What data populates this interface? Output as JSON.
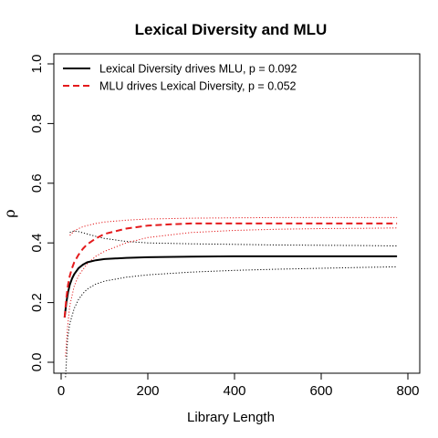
{
  "chart_data": {
    "type": "line",
    "title": "Lexical Diversity and MLU",
    "xlabel": "Library Length",
    "ylabel": "ρ",
    "xlim": [
      0,
      800
    ],
    "ylim": [
      0,
      1
    ],
    "x_ticks": [
      "0",
      "200",
      "400",
      "600",
      "800"
    ],
    "y_ticks": [
      "0.0",
      "0.2",
      "0.4",
      "0.6",
      "0.8",
      "1.0"
    ],
    "legend_position": "top-left",
    "series": [
      {
        "name": "Lexical Diversity drives MLU, p = 0.092",
        "color": "#000000",
        "style": "solid",
        "x": [
          8,
          12,
          16,
          20,
          25,
          30,
          40,
          50,
          60,
          80,
          100,
          150,
          200,
          300,
          400,
          500,
          600,
          700,
          775
        ],
        "y": [
          0.15,
          0.2,
          0.235,
          0.26,
          0.28,
          0.295,
          0.315,
          0.327,
          0.335,
          0.342,
          0.346,
          0.35,
          0.352,
          0.354,
          0.355,
          0.355,
          0.355,
          0.355,
          0.355
        ]
      },
      {
        "name": "MLU drives Lexical Diversity, p = 0.052",
        "color": "#e41a1c",
        "style": "dashed",
        "x": [
          8,
          12,
          16,
          20,
          25,
          30,
          40,
          50,
          60,
          80,
          100,
          150,
          200,
          250,
          300,
          400,
          500,
          600,
          700,
          775
        ],
        "y": [
          0.15,
          0.215,
          0.26,
          0.29,
          0.315,
          0.335,
          0.36,
          0.38,
          0.395,
          0.415,
          0.43,
          0.448,
          0.458,
          0.462,
          0.465,
          0.465,
          0.465,
          0.465,
          0.465,
          0.465
        ]
      }
    ],
    "confidence_bands": [
      {
        "series": "Lexical Diversity drives MLU, p = 0.092",
        "color": "#000000",
        "style": "dotted",
        "upper": {
          "x": [
            20,
            30,
            40,
            60,
            80,
            100,
            150,
            200,
            300,
            400,
            500,
            600,
            700,
            775
          ],
          "y": [
            0.435,
            0.44,
            0.438,
            0.43,
            0.422,
            0.415,
            0.405,
            0.4,
            0.397,
            0.395,
            0.393,
            0.392,
            0.391,
            0.39
          ]
        },
        "lower": {
          "x": [
            10,
            15,
            20,
            30,
            40,
            50,
            60,
            80,
            100,
            150,
            200,
            300,
            400,
            500,
            600,
            700,
            775
          ],
          "y": [
            -0.05,
            0.08,
            0.13,
            0.18,
            0.21,
            0.23,
            0.245,
            0.262,
            0.272,
            0.285,
            0.293,
            0.302,
            0.308,
            0.312,
            0.315,
            0.318,
            0.32
          ]
        }
      },
      {
        "series": "MLU drives Lexical Diversity, p = 0.052",
        "color": "#e41a1c",
        "style": "dotted",
        "upper": {
          "x": [
            20,
            30,
            40,
            50,
            60,
            80,
            100,
            150,
            200,
            300,
            400,
            500,
            600,
            700,
            775
          ],
          "y": [
            0.425,
            0.44,
            0.448,
            0.454,
            0.458,
            0.465,
            0.47,
            0.476,
            0.48,
            0.483,
            0.484,
            0.485,
            0.485,
            0.485,
            0.485
          ]
        },
        "lower": {
          "x": [
            10,
            15,
            20,
            30,
            40,
            60,
            80,
            100,
            150,
            200,
            300,
            400,
            500,
            600,
            700,
            775
          ],
          "y": [
            0.02,
            0.12,
            0.19,
            0.255,
            0.29,
            0.33,
            0.355,
            0.372,
            0.4,
            0.418,
            0.435,
            0.442,
            0.446,
            0.448,
            0.449,
            0.45
          ]
        }
      }
    ]
  }
}
